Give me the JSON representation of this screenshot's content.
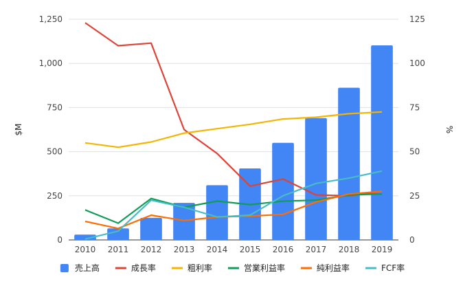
{
  "chart_data": {
    "type": "bar",
    "categories": [
      "2010",
      "2011",
      "2012",
      "2013",
      "2014",
      "2015",
      "2016",
      "2017",
      "2018",
      "2019"
    ],
    "ylabel": "$M",
    "y2label": "%",
    "ylim": [
      0,
      1250
    ],
    "y2lim": [
      0,
      125
    ],
    "yticks": [
      "0",
      "250",
      "500",
      "750",
      "1,000",
      "1,250"
    ],
    "y2ticks": [
      "0",
      "25",
      "50",
      "75",
      "100",
      "125"
    ],
    "grid": true,
    "legend_position": "bottom",
    "series": [
      {
        "name": "売上高",
        "type": "bar",
        "axis": "left",
        "color": "#4285F4",
        "values": [
          30,
          65,
          125,
          210,
          310,
          405,
          550,
          690,
          862,
          1102
        ]
      },
      {
        "name": "成長率",
        "type": "line",
        "axis": "right",
        "color": "#DB4437",
        "values": [
          123,
          110,
          111.5,
          62.5,
          49,
          30.5,
          34.5,
          25.5,
          25,
          27.5
        ]
      },
      {
        "name": "粗利率",
        "type": "line",
        "axis": "right",
        "color": "#F4B400",
        "values": [
          55,
          52.5,
          55.5,
          60.5,
          63,
          65.5,
          68.5,
          69.5,
          71.5,
          72.5
        ]
      },
      {
        "name": "営業利益率",
        "type": "line",
        "axis": "right",
        "color": "#0F9D58",
        "values": [
          17,
          9.5,
          23.5,
          18.5,
          22,
          20,
          22,
          22.5,
          25.5,
          26
        ]
      },
      {
        "name": "純利益率",
        "type": "line",
        "axis": "right",
        "color": "#FF6D00",
        "values": [
          10.5,
          6.5,
          14,
          11,
          13,
          13.5,
          14.5,
          21.5,
          26,
          27.5
        ]
      },
      {
        "name": "FCF率",
        "type": "line",
        "axis": "right",
        "color": "#46BDC6",
        "values": [
          0.5,
          5,
          22.5,
          18.5,
          13,
          14,
          25,
          32,
          35,
          39
        ]
      }
    ]
  }
}
